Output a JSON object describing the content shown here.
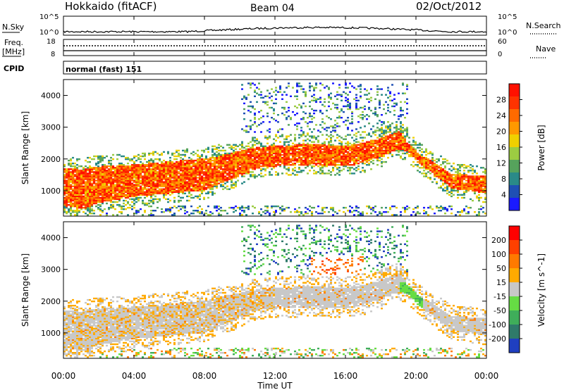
{
  "header": {
    "station": "Hokkaido (fitACF)",
    "beam": "Beam 04",
    "date": "02/Oct/2012"
  },
  "noise_panel": {
    "left_label": "N.Sky",
    "right_label": "N.Search",
    "left_ticks": [
      "10^5",
      "10^0"
    ],
    "right_ticks": [
      "10^5",
      "10^0"
    ]
  },
  "freq_panel": {
    "left_label_1": "Freq.",
    "left_label_2": "[MHz]",
    "right_label": "Nave",
    "left_ticks": [
      "18",
      "8"
    ],
    "right_ticks": [
      "60",
      "0"
    ]
  },
  "cpid": {
    "label": "CPID",
    "value": "normal (fast) 151"
  },
  "chart_data": [
    {
      "type": "heatmap",
      "name": "power",
      "ylabel": "Slant Range [km]",
      "y_ticks": [
        "1000",
        "2000",
        "3000",
        "4000"
      ],
      "ylim": [
        200,
        4500
      ],
      "colorbar_label": "Power [dB]",
      "colorbar_ticks": [
        "28",
        "24",
        "20",
        "16",
        "12",
        "8",
        "4"
      ],
      "colors": [
        "#1a1aff",
        "#1f4fb4",
        "#2a8a88",
        "#56a35c",
        "#9ccc42",
        "#f0d000",
        "#ff9900",
        "#ff6a00",
        "#ff3300",
        "#ff1100"
      ],
      "bands_km": [
        {
          "x": [
            "00:00",
            "01:00",
            "02:00",
            "04:00",
            "06:00",
            "08:00",
            "09:00",
            "10:00",
            "11:00",
            "12:00",
            "14:00",
            "16:00",
            "17:00",
            "18:00",
            "19:00",
            "19:30",
            "20:00",
            "22:00",
            "24:00"
          ],
          "low": [
            500,
            400,
            600,
            800,
            900,
            1000,
            1250,
            1450,
            1700,
            1750,
            1800,
            1750,
            1850,
            2050,
            2300,
            2200,
            1900,
            1050,
            900
          ],
          "high": [
            1700,
            1650,
            1750,
            1800,
            1900,
            2000,
            2100,
            2250,
            2350,
            2400,
            2450,
            2400,
            2500,
            2650,
            2850,
            2500,
            2200,
            1500,
            1450
          ]
        }
      ]
    },
    {
      "type": "heatmap",
      "name": "velocity",
      "ylabel": "Slant Range [km]",
      "y_ticks": [
        "1000",
        "2000",
        "3000",
        "4000"
      ],
      "ylim": [
        200,
        4500
      ],
      "colorbar_label": "Velocity [m s^-1]",
      "colorbar_ticks": [
        "200",
        "100",
        "50",
        "15",
        "-15",
        "-50",
        "-100",
        "-200"
      ],
      "colors": [
        "#1f3fc0",
        "#2f7a6a",
        "#3fae5a",
        "#66dd44",
        "#c8c8c8",
        "#ffaa00",
        "#ff7a00",
        "#ff4000",
        "#ff0000"
      ]
    }
  ],
  "x_axis": {
    "ticks": [
      "00:00",
      "04:00",
      "08:00",
      "12:00",
      "16:00",
      "20:00",
      "00:00"
    ],
    "label": "Time UT"
  }
}
